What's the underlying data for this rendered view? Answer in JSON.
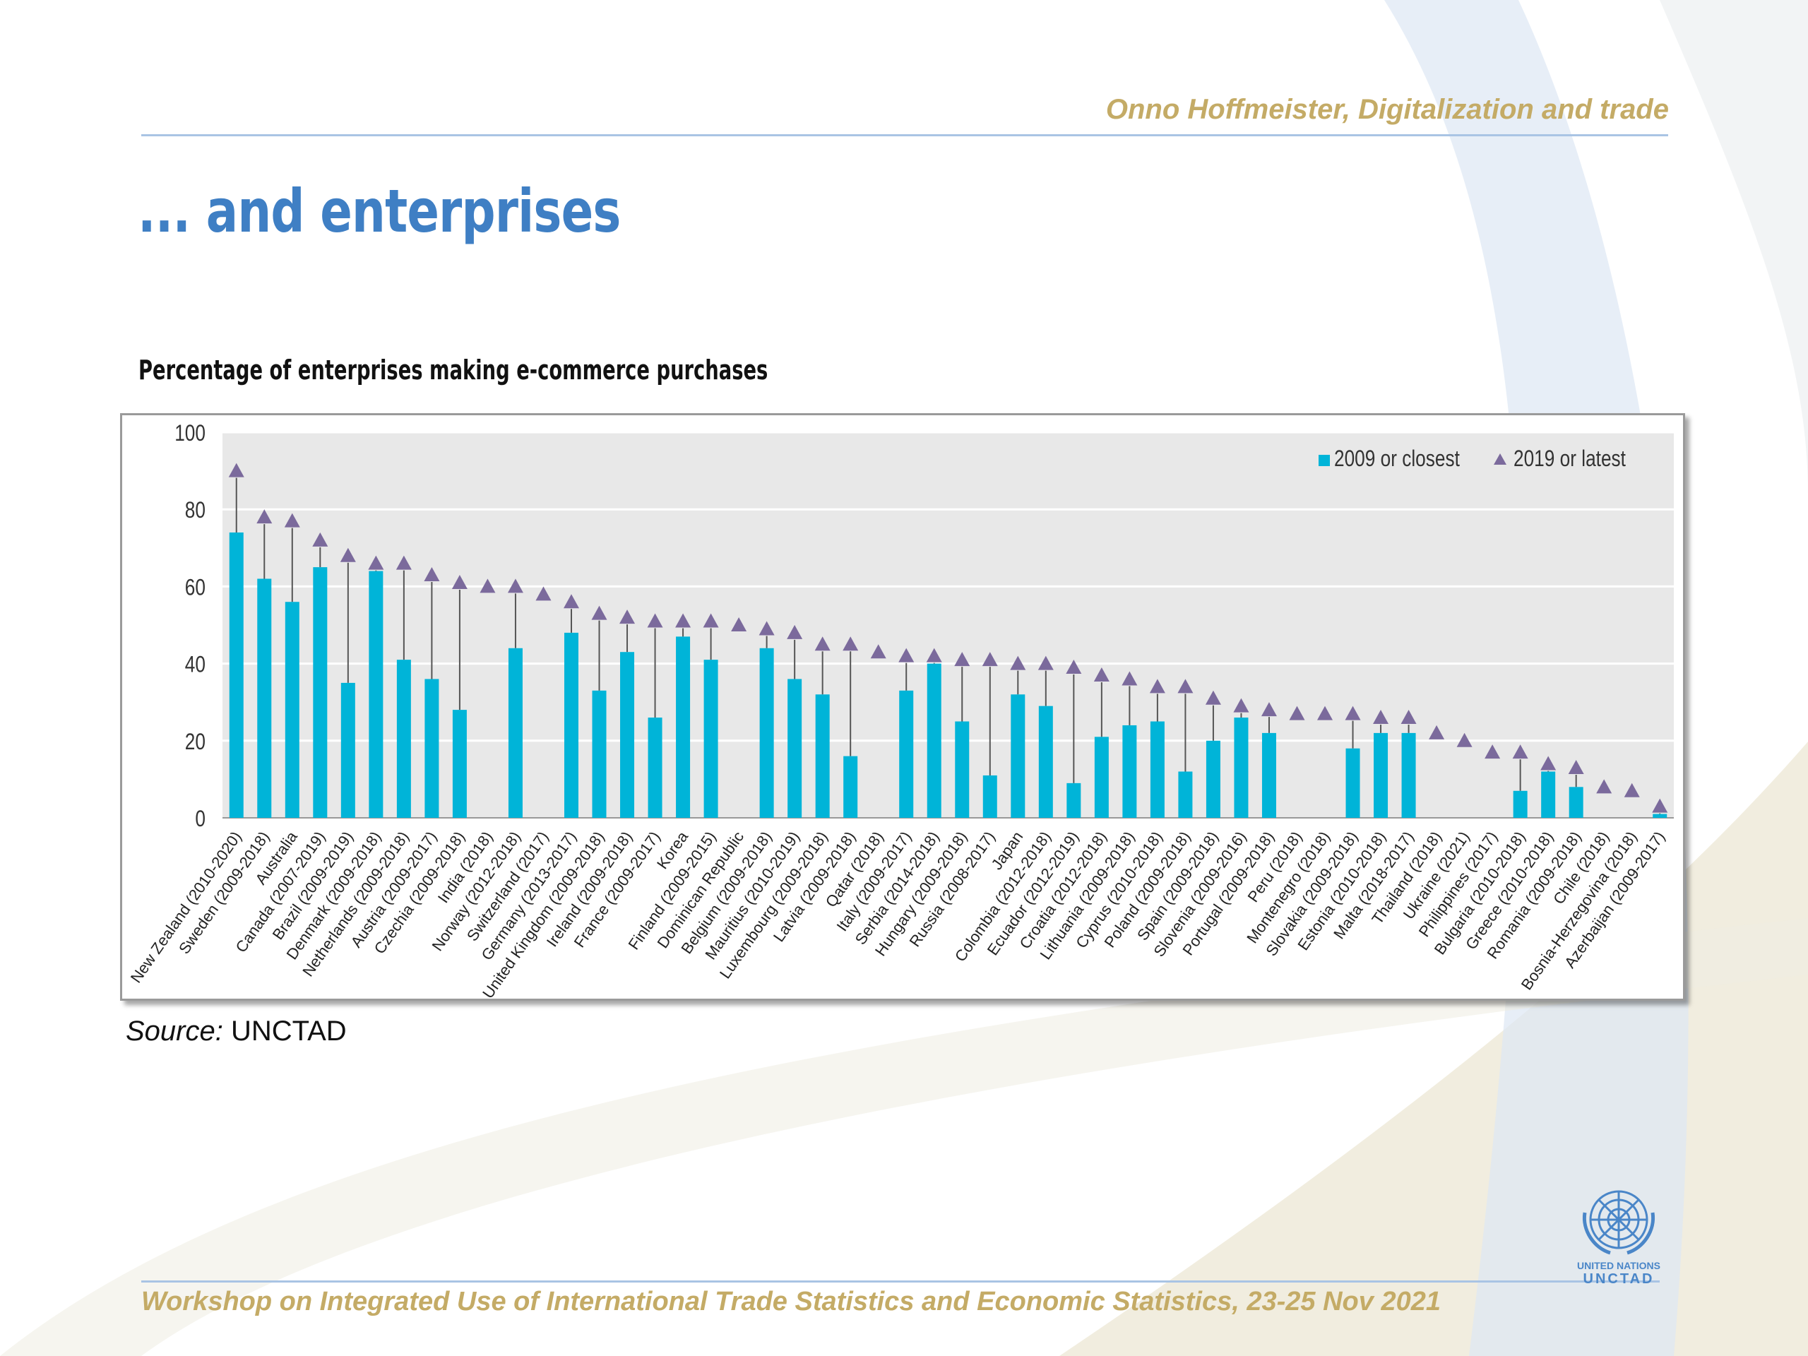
{
  "header": {
    "author": "Onno Hoffmeister, Digitalization and trade",
    "title": "... and enterprises"
  },
  "chart_heading": "Percentage of enterprises making e-commerce purchases",
  "source": {
    "label": "Source:",
    "value": "UNCTAD"
  },
  "footer": {
    "text": "Workshop on Integrated Use of International Trade Statistics and Economic Statistics, 23-25 Nov 2021"
  },
  "logo": {
    "line1": "UNITED NATIONS",
    "line2": "UNCTAD"
  },
  "colors": {
    "bar": "#00b4d8",
    "marker": "#7b6a9c",
    "plot_bg": "#e8e8e8",
    "accent": "#3f7fc4",
    "gold": "#c4ab66"
  },
  "chart_data": {
    "type": "bar",
    "title": "Percentage of enterprises making e-commerce purchases",
    "xlabel": "",
    "ylabel": "",
    "ylim": [
      0,
      100
    ],
    "yticks": [
      0,
      20,
      40,
      60,
      80,
      100
    ],
    "grid": true,
    "legend_position": "top-right",
    "categories": [
      "New Zealand (2010-2020)",
      "Sweden (2009-2018)",
      "Australia",
      "Canada (2007-2019)",
      "Brazil (2009-2019)",
      "Denmark (2009-2018)",
      "Netherlands (2009-2018)",
      "Austria (2009-2017)",
      "Czechia (2009-2018)",
      "India (2018)",
      "Norway (2012-2018)",
      "Switzerland (2017)",
      "Germany (2013-2017)",
      "United Kingdom (2009-2018)",
      "Ireland (2009-2018)",
      "France (2009-2017)",
      "Korea",
      "Finland (2009-2015)",
      "Dominican Republic",
      "Belgium (2009-2018)",
      "Mauritius (2010-2019)",
      "Luxembourg (2009-2018)",
      "Latvia (2009-2018)",
      "Qatar (2018)",
      "Italy (2009-2017)",
      "Serbia (2014-2018)",
      "Hungary (2009-2018)",
      "Russia (2008-2017)",
      "Japan",
      "Colombia (2012-2018)",
      "Ecuador (2012-2019)",
      "Croatia (2012-2018)",
      "Lithuania (2009-2018)",
      "Cyprus (2010-2018)",
      "Poland (2009-2018)",
      "Spain (2009-2018)",
      "Slovenia (2009-2016)",
      "Portugal (2009-2018)",
      "Peru (2018)",
      "Montenegro (2018)",
      "Slovakia (2009-2018)",
      "Estonia (2010-2018)",
      "Malta (2018-2017)",
      "Thailand (2018)",
      "Ukraine (2021)",
      "Philippines (2017)",
      "Bulgaria (2010-2018)",
      "Greece (2010-2018)",
      "Romania (2009-2018)",
      "Chile (2018)",
      "Bosnia-Herzegovina (2018)",
      "Azerbaijan (2009-2017)"
    ],
    "series": [
      {
        "name": "2009 or closest",
        "type": "bar",
        "values": [
          74,
          62,
          56,
          65,
          35,
          64,
          41,
          36,
          28,
          null,
          44,
          null,
          48,
          33,
          43,
          26,
          47,
          41,
          null,
          44,
          36,
          32,
          16,
          null,
          33,
          40,
          25,
          11,
          32,
          29,
          9,
          21,
          24,
          25,
          12,
          20,
          26,
          22,
          null,
          null,
          18,
          22,
          22,
          null,
          null,
          null,
          7,
          12,
          8,
          null,
          null,
          1
        ]
      },
      {
        "name": "2019 or latest",
        "type": "marker",
        "values": [
          90,
          78,
          77,
          72,
          68,
          66,
          66,
          63,
          61,
          60,
          60,
          58,
          56,
          53,
          52,
          51,
          51,
          51,
          50,
          49,
          48,
          45,
          45,
          43,
          42,
          42,
          41,
          41,
          40,
          40,
          39,
          37,
          36,
          34,
          34,
          31,
          29,
          28,
          27,
          27,
          27,
          26,
          26,
          22,
          20,
          17,
          17,
          14,
          13,
          8,
          7,
          3
        ]
      }
    ]
  }
}
